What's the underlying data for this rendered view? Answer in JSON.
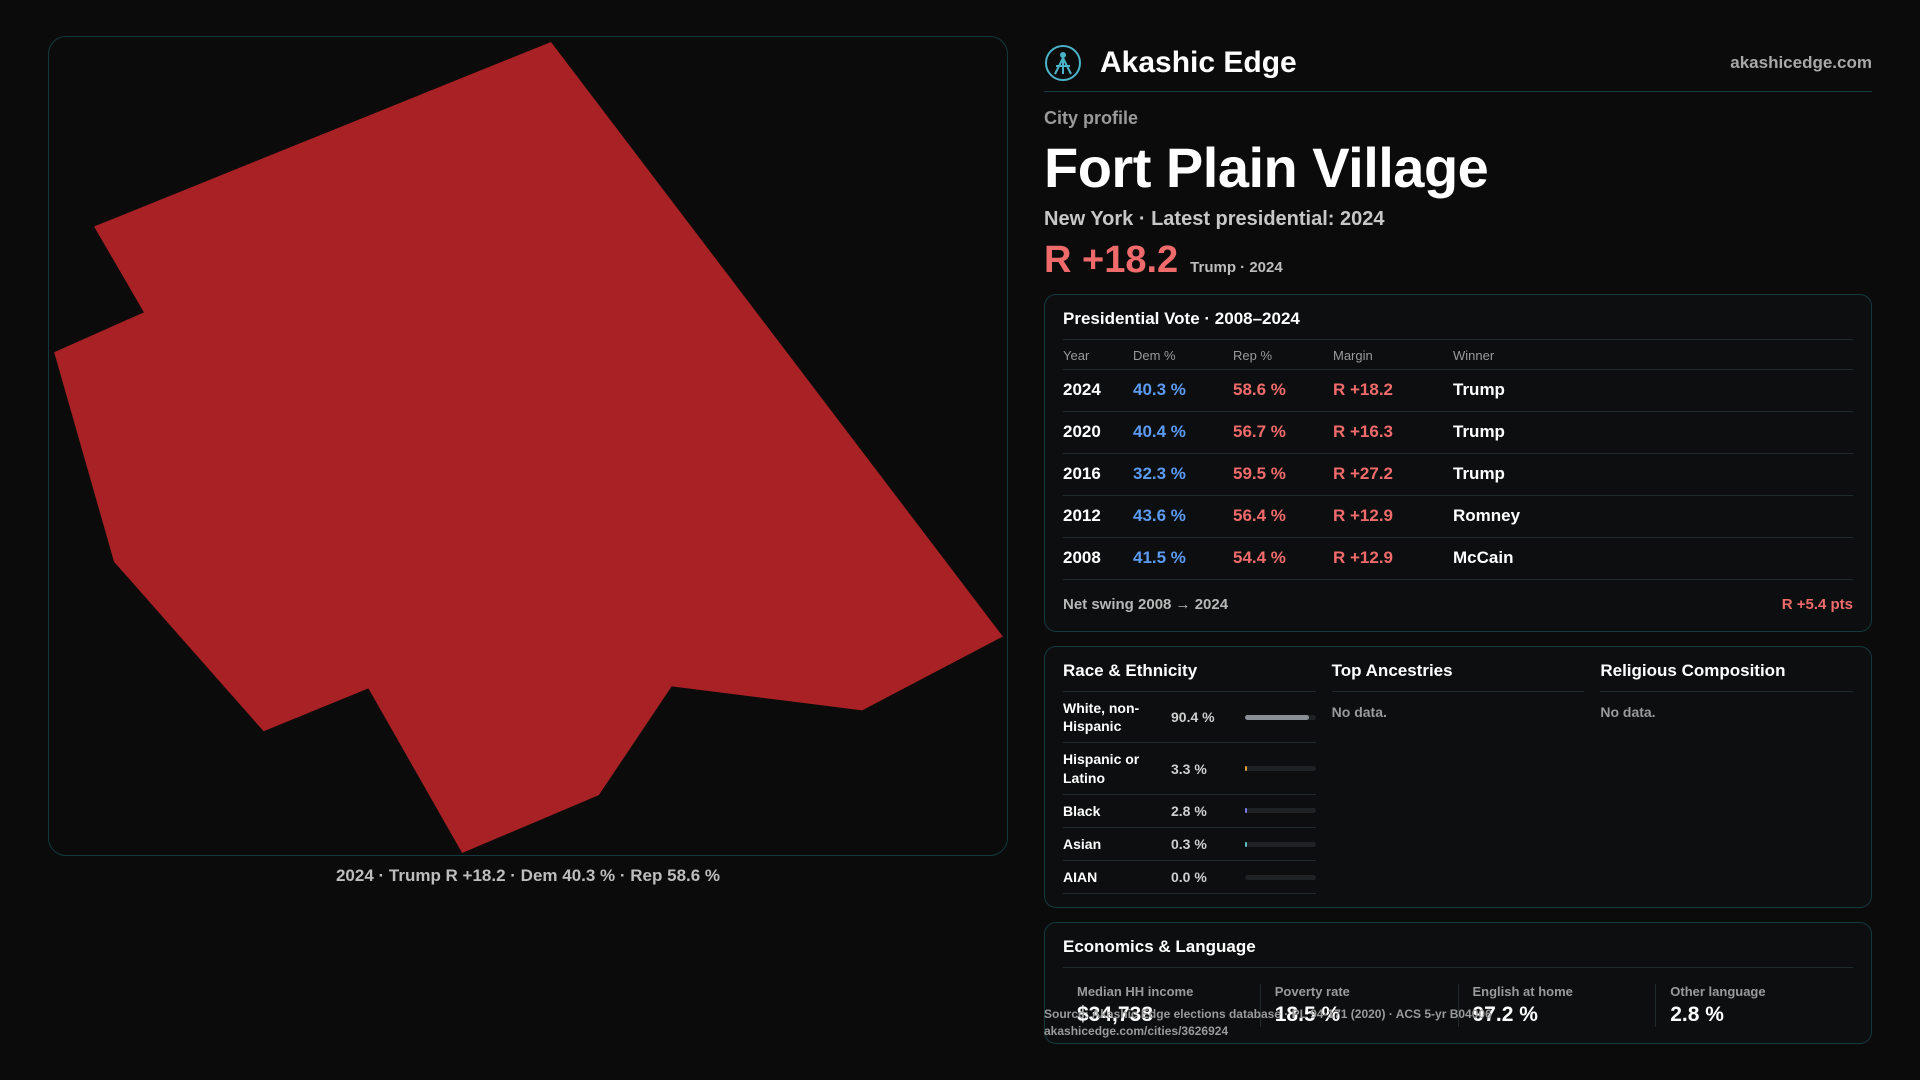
{
  "map": {
    "fill_color": "#a82124",
    "caption": "2024 · Trump R +18.2 · Dem 40.3 % · Rep 58.6 %"
  },
  "brand": {
    "name": "Akashic Edge",
    "url": "akashicedge.com",
    "icon": "akashic-logo-icon",
    "accent": "#4bb3c8"
  },
  "profile": {
    "kicker": "City profile",
    "city": "Fort Plain Village",
    "subline": "New York · Latest presidential: 2024",
    "margin": "R +18.2",
    "margin_note": "Trump · 2024"
  },
  "vote": {
    "title": "Presidential Vote · 2008–2024",
    "headers": {
      "year": "Year",
      "dem": "Dem %",
      "rep": "Rep %",
      "margin": "Margin",
      "winner": "Winner"
    },
    "rows": [
      {
        "year": "2024",
        "dem": "40.3 %",
        "rep": "58.6 %",
        "margin": "R +18.2",
        "winner": "Trump"
      },
      {
        "year": "2020",
        "dem": "40.4 %",
        "rep": "56.7 %",
        "margin": "R +16.3",
        "winner": "Trump"
      },
      {
        "year": "2016",
        "dem": "32.3 %",
        "rep": "59.5 %",
        "margin": "R +27.2",
        "winner": "Trump"
      },
      {
        "year": "2012",
        "dem": "43.6 %",
        "rep": "56.4 %",
        "margin": "R +12.9",
        "winner": "Romney"
      },
      {
        "year": "2008",
        "dem": "41.5 %",
        "rep": "54.4 %",
        "margin": "R +12.9",
        "winner": "McCain"
      }
    ],
    "swing_label": "Net swing 2008 → 2024",
    "swing_value": "R +5.4 pts",
    "dem_color": "#5b9bf2",
    "rep_color": "#ef6b6b"
  },
  "race": {
    "title": "Race & Ethnicity",
    "rows": [
      {
        "label": "White, non-Hispanic",
        "pct": "90.4 %",
        "share": 0.904,
        "color": "#8a8f96"
      },
      {
        "label": "Hispanic or Latino",
        "pct": "3.3 %",
        "share": 0.033,
        "color": "#e0a040"
      },
      {
        "label": "Black",
        "pct": "2.8 %",
        "share": 0.028,
        "color": "#7a7cf0"
      },
      {
        "label": "Asian",
        "pct": "0.3 %",
        "share": 0.003,
        "color": "#5ac0c0"
      },
      {
        "label": "AIAN",
        "pct": "0.0 %",
        "share": 0.0,
        "color": "#5ac0c0"
      }
    ]
  },
  "ancestries": {
    "title": "Top Ancestries",
    "empty": "No data."
  },
  "religion": {
    "title": "Religious Composition",
    "empty": "No data."
  },
  "economics": {
    "title": "Economics & Language",
    "items": [
      {
        "label": "Median HH income",
        "value": "$34,738"
      },
      {
        "label": "Poverty rate",
        "value": "18.5 %"
      },
      {
        "label": "English at home",
        "value": "97.2 %"
      },
      {
        "label": "Other language",
        "value": "2.8 %"
      }
    ]
  },
  "source": {
    "line1": "Source: Akashic Edge elections database · PL 94-171 (2020) · ACS 5-yr B04006",
    "line2": "akashicedge.com/cities/3626924"
  }
}
